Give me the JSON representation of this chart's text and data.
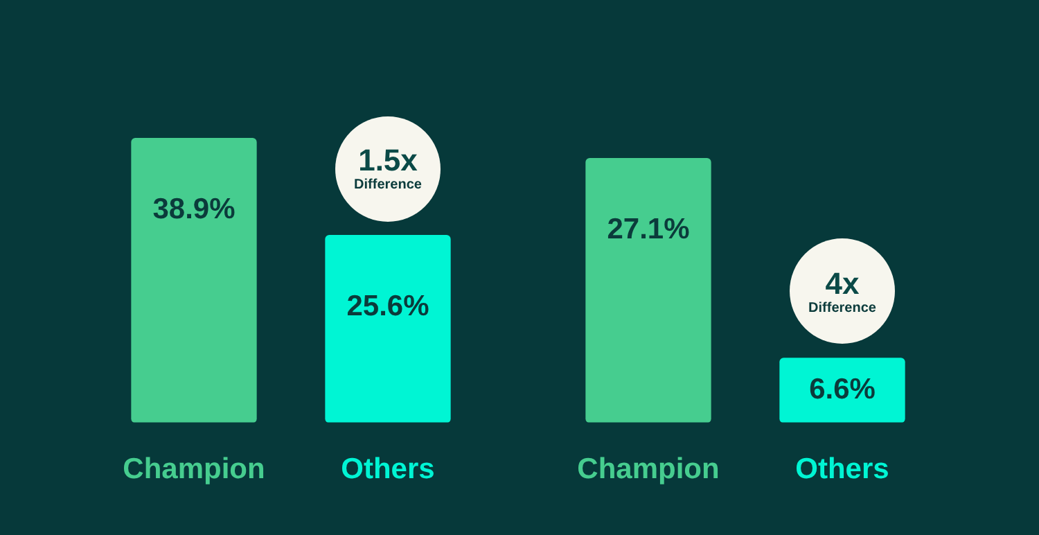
{
  "chart_data": [
    {
      "type": "bar",
      "categories": [
        "Champion",
        "Others"
      ],
      "values": [
        38.9,
        25.6
      ],
      "colors": [
        "#46cd8f",
        "#00f5d4"
      ],
      "data_labels": true,
      "value_labels": [
        "38.9%",
        "25.6%"
      ],
      "annotations": [
        {
          "text": "1.5x\nDifference",
          "x": "Others",
          "y": 25.6
        }
      ]
    },
    {
      "type": "bar",
      "categories": [
        "Champion",
        "Others"
      ],
      "values": [
        27.1,
        6.6
      ],
      "colors": [
        "#46cd8f",
        "#00f5d4"
      ],
      "data_labels": true,
      "value_labels": [
        "27.1%",
        "6.6%"
      ],
      "annotations": [
        {
          "text": "4x\nDifference",
          "x": "Others",
          "y": 6.6
        }
      ]
    }
  ]
}
